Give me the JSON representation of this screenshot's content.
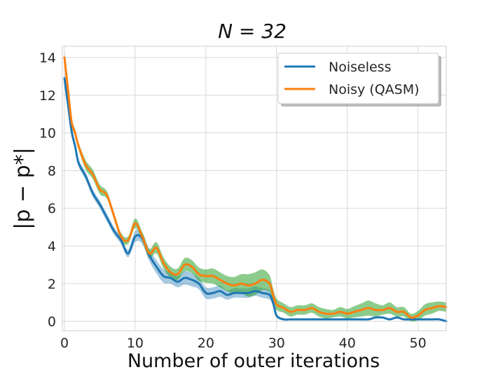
{
  "chart_data": {
    "type": "line",
    "title": "N = 32",
    "xlabel": "Number of outer iterations",
    "ylabel": "|p − p*|",
    "xlim": [
      -0.3,
      54
    ],
    "ylim": [
      -0.5,
      14.6
    ],
    "grid": true,
    "legend_position": "top-right",
    "x_ticks": [
      0,
      10,
      20,
      30,
      40,
      50
    ],
    "y_ticks": [
      0,
      2,
      4,
      6,
      8,
      10,
      12,
      14
    ],
    "colors": {
      "noiseless": "#1f77b4",
      "noisy": "#ff7f0e",
      "band_noiseless": "#1f77b4",
      "band_noisy": "#2ca02c"
    },
    "series": [
      {
        "name": "Noiseless",
        "x": [
          0,
          0.5,
          1,
          1.5,
          2,
          3,
          4,
          5,
          6,
          7,
          8,
          9,
          10,
          11,
          12,
          13,
          14,
          15,
          16,
          17,
          18,
          19,
          20,
          21,
          22,
          23,
          24,
          25,
          26,
          27,
          28,
          29,
          29.5,
          30,
          31,
          32,
          33,
          34,
          35,
          36,
          37,
          38,
          39,
          40,
          41,
          42,
          43,
          44,
          45,
          46,
          47,
          48,
          49,
          50,
          51,
          52,
          53,
          54
        ],
        "values": [
          12.9,
          11.5,
          10.1,
          9.3,
          8.4,
          7.7,
          6.8,
          6.2,
          5.5,
          4.8,
          4.3,
          3.6,
          4.5,
          4.4,
          3.5,
          2.9,
          2.4,
          2.3,
          2.1,
          2.3,
          2.2,
          2.0,
          1.5,
          1.5,
          1.6,
          1.4,
          1.5,
          1.5,
          1.5,
          1.6,
          1.5,
          1.4,
          1.0,
          0.3,
          0.1,
          0.1,
          0.1,
          0.1,
          0.1,
          0.1,
          0.1,
          0.1,
          0.1,
          0.1,
          0.1,
          0.1,
          0.1,
          0.2,
          0.2,
          0.1,
          0.2,
          0.1,
          0.1,
          0.1,
          0.1,
          0.1,
          0.1,
          0.0
        ],
        "band": [
          0.35,
          0.3,
          0.25,
          0.2,
          0.2,
          0.2,
          0.2,
          0.2,
          0.2,
          0.2,
          0.2,
          0.2,
          0.3,
          0.3,
          0.3,
          0.35,
          0.35,
          0.3,
          0.3,
          0.35,
          0.35,
          0.3,
          0.3,
          0.3,
          0.3,
          0.25,
          0.25,
          0.25,
          0.25,
          0.25,
          0.25,
          0.25,
          0.2,
          0.1,
          0.05,
          0.05,
          0.05,
          0.05,
          0.05,
          0.05,
          0.05,
          0.05,
          0.05,
          0.05,
          0.05,
          0.05,
          0.05,
          0.05,
          0.05,
          0.05,
          0.05,
          0.05,
          0.05,
          0.05,
          0.05,
          0.05,
          0.05,
          0.05
        ]
      },
      {
        "name": "Noisy (QASM)",
        "x": [
          0,
          0.5,
          1,
          1.5,
          2,
          3,
          4,
          5,
          6,
          7,
          8,
          9,
          10,
          11,
          12,
          13,
          14,
          15,
          16,
          17,
          18,
          19,
          20,
          21,
          22,
          23,
          24,
          25,
          26,
          27,
          28,
          29,
          29.5,
          30,
          31,
          32,
          33,
          34,
          35,
          36,
          37,
          38,
          39,
          40,
          41,
          42,
          43,
          44,
          45,
          46,
          47,
          48,
          49,
          50,
          51,
          52,
          53,
          54
        ],
        "values": [
          14.0,
          12.3,
          10.6,
          10.0,
          9.3,
          8.3,
          7.8,
          7.0,
          6.7,
          5.6,
          4.5,
          4.3,
          5.2,
          4.5,
          3.6,
          3.9,
          3.1,
          2.6,
          2.5,
          3.0,
          2.9,
          2.5,
          2.4,
          2.4,
          2.2,
          2.0,
          1.9,
          2.0,
          1.9,
          2.0,
          2.2,
          2.0,
          1.4,
          0.9,
          0.7,
          0.5,
          0.6,
          0.6,
          0.7,
          0.5,
          0.4,
          0.4,
          0.5,
          0.4,
          0.5,
          0.6,
          0.7,
          0.6,
          0.6,
          0.7,
          0.5,
          0.5,
          0.2,
          0.3,
          0.6,
          0.7,
          0.8,
          0.75
        ],
        "band": [
          0.25,
          0.2,
          0.2,
          0.2,
          0.2,
          0.25,
          0.25,
          0.25,
          0.2,
          0.2,
          0.2,
          0.2,
          0.25,
          0.25,
          0.25,
          0.3,
          0.3,
          0.3,
          0.3,
          0.35,
          0.35,
          0.35,
          0.35,
          0.4,
          0.4,
          0.4,
          0.45,
          0.5,
          0.6,
          0.6,
          0.55,
          0.45,
          0.35,
          0.3,
          0.25,
          0.25,
          0.25,
          0.25,
          0.25,
          0.25,
          0.25,
          0.2,
          0.25,
          0.25,
          0.3,
          0.35,
          0.4,
          0.35,
          0.25,
          0.3,
          0.25,
          0.25,
          0.2,
          0.25,
          0.3,
          0.3,
          0.25,
          0.25
        ]
      }
    ]
  }
}
